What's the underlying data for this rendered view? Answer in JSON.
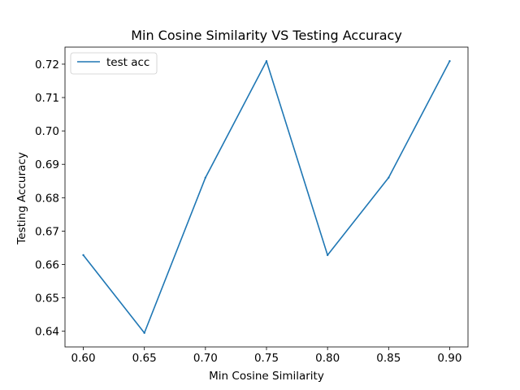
{
  "chart_data": {
    "type": "line",
    "title": "Min Cosine Similarity VS Testing Accuracy",
    "xlabel": "Min Cosine Similarity",
    "ylabel": "Testing Accuracy",
    "x": [
      0.6,
      0.65,
      0.7,
      0.75,
      0.8,
      0.85,
      0.9
    ],
    "xticks": [
      "0.60",
      "0.65",
      "0.70",
      "0.75",
      "0.80",
      "0.85",
      "0.90"
    ],
    "yticks": [
      "0.64",
      "0.65",
      "0.66",
      "0.67",
      "0.68",
      "0.69",
      "0.70",
      "0.71",
      "0.72"
    ],
    "xlim": [
      0.585,
      0.915
    ],
    "ylim": [
      0.6353,
      0.7251
    ],
    "grid": false,
    "legend_position": "upper-left",
    "series": [
      {
        "name": "test acc",
        "color": "#1f77b4",
        "values": [
          0.6628,
          0.6395,
          0.686,
          0.7209,
          0.6628,
          0.686,
          0.7209
        ]
      }
    ]
  }
}
